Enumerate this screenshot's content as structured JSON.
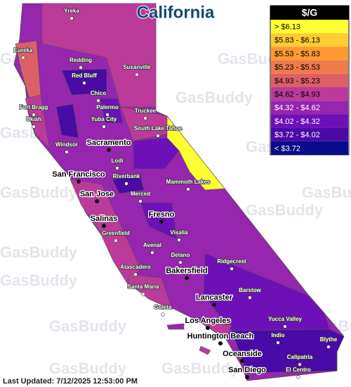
{
  "title": "California",
  "legend": {
    "header": "$/G",
    "items": [
      {
        "label": "> $6.13",
        "color": "#ffff33"
      },
      {
        "label": "$5.83 - $6.13",
        "color": "#ffcc33"
      },
      {
        "label": "$5.53 - $5.83",
        "color": "#ff9933"
      },
      {
        "label": "$5.23 - $5.53",
        "color": "#f07a4a"
      },
      {
        "label": "$4.93 - $5.23",
        "color": "#dd5f66"
      },
      {
        "label": "$4.62 - $4.93",
        "color": "#bb3a9a"
      },
      {
        "label": "$4.32 - $4.62",
        "color": "#9526ad"
      },
      {
        "label": "$4.02 - $4.32",
        "color": "#6e10b8"
      },
      {
        "label": "$3.72 - $4.02",
        "color": "#4a0aa6"
      },
      {
        "label": "< $3.72",
        "color": "#0a0a8a"
      }
    ]
  },
  "cities": [
    "Yreka",
    "Eureka",
    "Redding",
    "Susanville",
    "Red Bluff",
    "Chico",
    "Fort Bragg",
    "Palermo",
    "Truckee",
    "Ukiah",
    "Yuba City",
    "South Lake Tahoe",
    "Windsor",
    "Sacramento",
    "Lodi",
    "San Francisco",
    "Riverbank",
    "Mammoth Lakes",
    "San Jose",
    "Merced",
    "Fresno",
    "Salinas",
    "Greenfield",
    "Visalia",
    "Avenal",
    "Delano",
    "Ridgecrest",
    "Atascadero",
    "Bakersfield",
    "Barstow",
    "Santa Maria",
    "Lancaster",
    "Goleta",
    "Yucca Valley",
    "Los Angeles",
    "Indio",
    "Blythe",
    "Huntington Beach",
    "Oceanside",
    "Calipatria",
    "San Diego",
    "El Centro"
  ],
  "watermark": "GasBuddy",
  "footer": "Last Updated: 7/12/2025 12:53:00 PM"
}
